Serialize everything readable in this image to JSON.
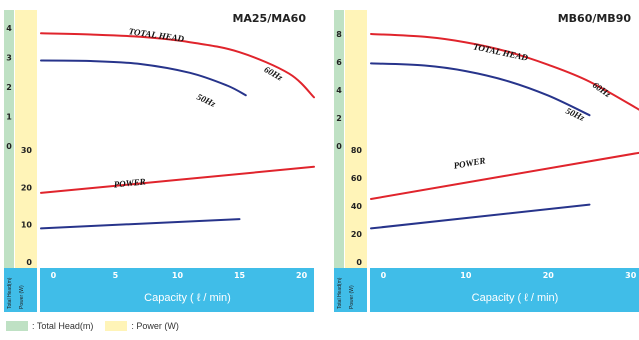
{
  "chart_data": [
    {
      "type": "line",
      "title": "MA25/MA60",
      "xlabel": "Capacity ( ℓ / min)",
      "x_ticks": [
        0,
        5,
        10,
        15,
        20
      ],
      "xlim": [
        -1,
        21
      ],
      "head_axis_label": "Total Head(m)",
      "power_axis_label": "Power (W)",
      "head_ticks": [
        0,
        1,
        2,
        3,
        4
      ],
      "power_ticks": [
        0,
        10,
        20,
        30
      ],
      "series": [
        {
          "name": "TOTAL HEAD",
          "axis": "head",
          "color": "#e0242c",
          "x": [
            -1,
            3,
            7,
            11,
            15,
            19,
            21
          ],
          "y": [
            3.82,
            3.78,
            3.7,
            3.52,
            3.18,
            2.45,
            1.65
          ]
        },
        {
          "name": "50Hz",
          "axis": "head",
          "color": "#27348b",
          "x": [
            -1,
            3,
            7,
            11,
            14,
            15.5
          ],
          "y": [
            2.9,
            2.88,
            2.78,
            2.48,
            2.05,
            1.72
          ]
        },
        {
          "name": "POWER",
          "axis": "power",
          "color": "#e0242c",
          "x": [
            -1,
            21
          ],
          "y": [
            18.5,
            25.5
          ]
        },
        {
          "name": "",
          "axis": "power",
          "color": "#27348b",
          "x": [
            -1,
            15
          ],
          "y": [
            9,
            11.5
          ]
        }
      ],
      "annotations": [
        "TOTAL HEAD",
        "60Hz",
        "50Hz",
        "POWER"
      ]
    },
    {
      "type": "line",
      "title": "MB60/MB90",
      "xlabel": "Capacity ( ℓ / min)",
      "x_ticks": [
        0,
        10,
        20,
        30
      ],
      "xlim": [
        -1.5,
        31
      ],
      "head_axis_label": "Total Head(m)",
      "power_axis_label": "Power (W)",
      "head_ticks": [
        0,
        2,
        4,
        6,
        8
      ],
      "power_ticks": [
        0,
        20,
        40,
        60,
        80
      ],
      "series": [
        {
          "name": "TOTAL HEAD",
          "axis": "head",
          "color": "#e0242c",
          "x": [
            -1.5,
            5,
            10,
            15,
            20,
            25,
            31
          ],
          "y": [
            8.0,
            7.8,
            7.4,
            6.75,
            5.8,
            4.6,
            2.6
          ]
        },
        {
          "name": "50Hz",
          "axis": "head",
          "color": "#27348b",
          "x": [
            -1.5,
            5,
            10,
            15,
            20,
            25
          ],
          "y": [
            5.9,
            5.75,
            5.35,
            4.65,
            3.6,
            2.2
          ]
        },
        {
          "name": "POWER",
          "axis": "power",
          "color": "#e0242c",
          "x": [
            -1.5,
            31
          ],
          "y": [
            45,
            78
          ]
        },
        {
          "name": "",
          "axis": "power",
          "color": "#27348b",
          "x": [
            -1.5,
            25
          ],
          "y": [
            24,
            41
          ]
        }
      ],
      "annotations": [
        "TOTAL HEAD",
        "60Hz",
        "50Hz",
        "POWER"
      ]
    }
  ],
  "legend": [
    {
      "label": ": Total Head(m)",
      "color": "#bfe1c4"
    },
    {
      "label": ": Power (W)",
      "color": "#fff4b8"
    }
  ],
  "colors": {
    "head_strip": "#bfe1c4",
    "power_strip": "#fff4b8",
    "x_band": "#40bde8",
    "red": "#e0242c",
    "blue": "#27348b"
  }
}
